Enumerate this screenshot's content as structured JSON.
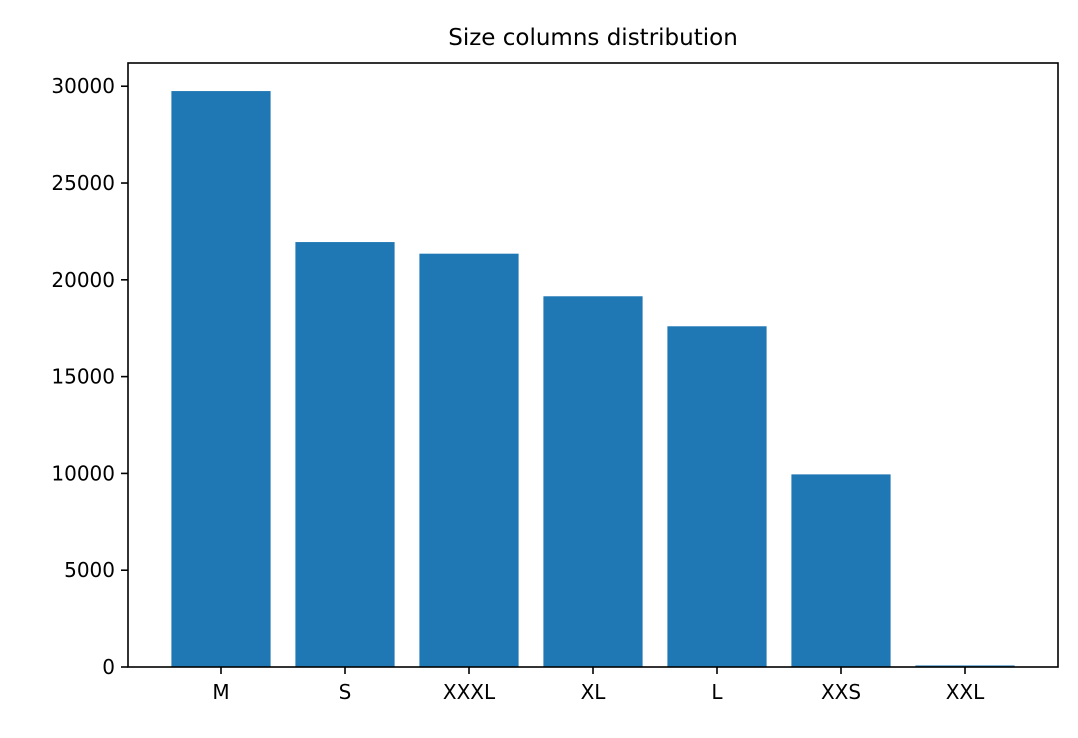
{
  "chart_data": {
    "type": "bar",
    "title": "Size columns distribution",
    "xlabel": "",
    "ylabel": "",
    "categories": [
      "M",
      "S",
      "XXXL",
      "XL",
      "L",
      "XXS",
      "XXL"
    ],
    "values": [
      29750,
      21950,
      21350,
      19150,
      17600,
      9950,
      80
    ],
    "ylim": [
      0,
      31200
    ],
    "yticks": [
      0,
      5000,
      10000,
      15000,
      20000,
      25000,
      30000
    ],
    "grid": false,
    "legend": "none",
    "bar_color": "#1f77b4"
  }
}
